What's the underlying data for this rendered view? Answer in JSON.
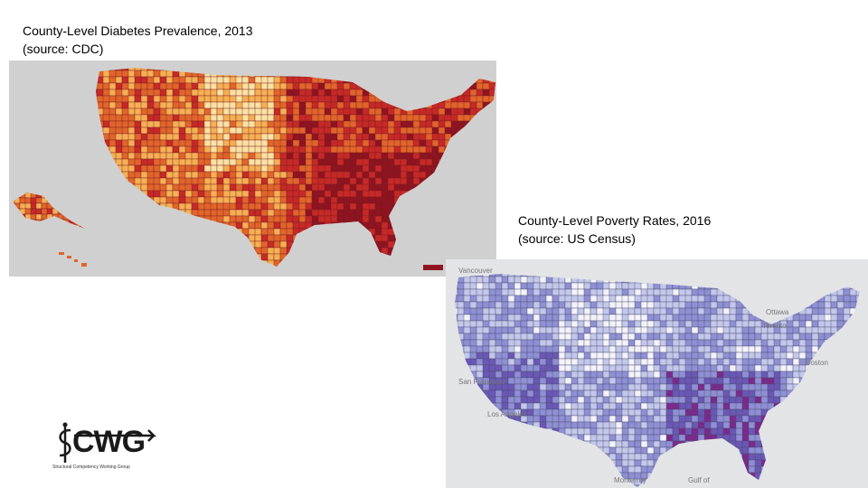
{
  "captions": {
    "diabetes_line1": "County-Level Diabetes Prevalence, 2013",
    "diabetes_line2": "(source: CDC)",
    "poverty_line1": "County-Level Poverty Rates, 2016",
    "poverty_line2": "(source: US Census)"
  },
  "diabetes_map": {
    "palette": [
      "#fbe2a4",
      "#f5b055",
      "#e0652c",
      "#c52a28",
      "#8e1422"
    ],
    "background": "#d0d0d0"
  },
  "poverty_map": {
    "palette": [
      "#f3f3fa",
      "#c3c7e9",
      "#8f90d3",
      "#6a58b4",
      "#7a2a8a"
    ],
    "background": "#e2e4e6",
    "place_labels": [
      "Vancouver",
      "Ottawa",
      "Toronto",
      "San Francisco",
      "Los Angeles",
      "Monterrey",
      "Gulf of",
      "Boston"
    ]
  },
  "logo": {
    "text": "CWG",
    "subtitle": "Structural Competency Working Group"
  }
}
